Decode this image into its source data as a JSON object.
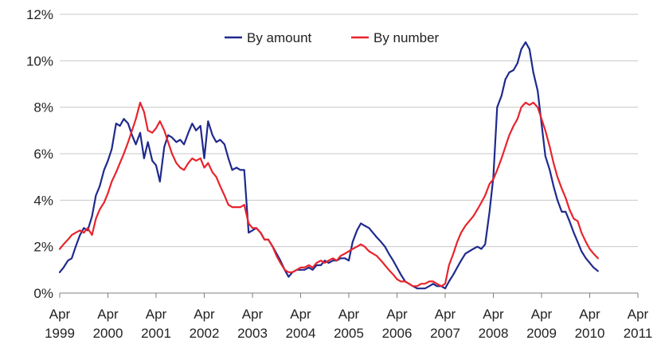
{
  "chart_data": {
    "type": "line",
    "title": "",
    "xlabel": "",
    "ylabel": "",
    "ylim": [
      0,
      12
    ],
    "y_tick_labels": [
      "0%",
      "2%",
      "4%",
      "6%",
      "8%",
      "10%",
      "12%"
    ],
    "y_ticks": [
      0,
      2,
      4,
      6,
      8,
      10,
      12
    ],
    "x_tick_labels": [
      {
        "top": "Apr",
        "bottom": "1999"
      },
      {
        "top": "Apr",
        "bottom": "2000"
      },
      {
        "top": "Apr",
        "bottom": "2001"
      },
      {
        "top": "Apr",
        "bottom": "2002"
      },
      {
        "top": "Apr",
        "bottom": "2003"
      },
      {
        "top": "Apr",
        "bottom": "2004"
      },
      {
        "top": "Apr",
        "bottom": "2005"
      },
      {
        "top": "Apr",
        "bottom": "2006"
      },
      {
        "top": "Apr",
        "bottom": "2007"
      },
      {
        "top": "Apr",
        "bottom": "2008"
      },
      {
        "top": "Apr",
        "bottom": "2009"
      },
      {
        "top": "Apr",
        "bottom": "2010"
      },
      {
        "top": "Apr",
        "bottom": "2011"
      }
    ],
    "xlim": [
      1999.25,
      2011.25
    ],
    "grid": "horizontal",
    "legend_position": "top-center",
    "series": [
      {
        "name": "By amount",
        "color": "#1f2a8c",
        "points": [
          [
            1999.25,
            0.9
          ],
          [
            1999.33,
            1.1
          ],
          [
            1999.42,
            1.4
          ],
          [
            1999.5,
            1.5
          ],
          [
            1999.58,
            2.0
          ],
          [
            1999.67,
            2.5
          ],
          [
            1999.75,
            2.8
          ],
          [
            1999.83,
            2.7
          ],
          [
            1999.92,
            3.3
          ],
          [
            2000.0,
            4.2
          ],
          [
            2000.08,
            4.6
          ],
          [
            2000.17,
            5.3
          ],
          [
            2000.25,
            5.7
          ],
          [
            2000.33,
            6.2
          ],
          [
            2000.42,
            7.3
          ],
          [
            2000.5,
            7.2
          ],
          [
            2000.58,
            7.5
          ],
          [
            2000.67,
            7.3
          ],
          [
            2000.75,
            6.8
          ],
          [
            2000.83,
            6.4
          ],
          [
            2000.92,
            6.9
          ],
          [
            2001.0,
            5.8
          ],
          [
            2001.08,
            6.5
          ],
          [
            2001.17,
            5.7
          ],
          [
            2001.25,
            5.5
          ],
          [
            2001.33,
            4.8
          ],
          [
            2001.42,
            6.3
          ],
          [
            2001.5,
            6.8
          ],
          [
            2001.58,
            6.7
          ],
          [
            2001.67,
            6.5
          ],
          [
            2001.75,
            6.6
          ],
          [
            2001.83,
            6.4
          ],
          [
            2001.92,
            6.9
          ],
          [
            2002.0,
            7.3
          ],
          [
            2002.08,
            7.0
          ],
          [
            2002.17,
            7.2
          ],
          [
            2002.25,
            5.8
          ],
          [
            2002.33,
            7.4
          ],
          [
            2002.42,
            6.8
          ],
          [
            2002.5,
            6.5
          ],
          [
            2002.58,
            6.6
          ],
          [
            2002.67,
            6.4
          ],
          [
            2002.75,
            5.8
          ],
          [
            2002.83,
            5.3
          ],
          [
            2002.92,
            5.4
          ],
          [
            2003.0,
            5.3
          ],
          [
            2003.08,
            5.3
          ],
          [
            2003.17,
            2.6
          ],
          [
            2003.25,
            2.7
          ],
          [
            2003.33,
            2.8
          ],
          [
            2003.42,
            2.6
          ],
          [
            2003.5,
            2.3
          ],
          [
            2003.58,
            2.3
          ],
          [
            2003.67,
            2.0
          ],
          [
            2003.75,
            1.7
          ],
          [
            2003.83,
            1.4
          ],
          [
            2003.92,
            1.0
          ],
          [
            2004.0,
            0.7
          ],
          [
            2004.08,
            0.9
          ],
          [
            2004.17,
            1.0
          ],
          [
            2004.25,
            1.0
          ],
          [
            2004.33,
            1.0
          ],
          [
            2004.42,
            1.1
          ],
          [
            2004.5,
            1.0
          ],
          [
            2004.58,
            1.2
          ],
          [
            2004.67,
            1.2
          ],
          [
            2004.75,
            1.4
          ],
          [
            2004.83,
            1.3
          ],
          [
            2004.92,
            1.4
          ],
          [
            2005.0,
            1.4
          ],
          [
            2005.08,
            1.5
          ],
          [
            2005.17,
            1.5
          ],
          [
            2005.25,
            1.4
          ],
          [
            2005.33,
            2.2
          ],
          [
            2005.42,
            2.7
          ],
          [
            2005.5,
            3.0
          ],
          [
            2005.58,
            2.9
          ],
          [
            2005.67,
            2.8
          ],
          [
            2005.75,
            2.6
          ],
          [
            2005.83,
            2.4
          ],
          [
            2005.92,
            2.2
          ],
          [
            2006.0,
            2.0
          ],
          [
            2006.08,
            1.7
          ],
          [
            2006.17,
            1.4
          ],
          [
            2006.25,
            1.1
          ],
          [
            2006.33,
            0.8
          ],
          [
            2006.42,
            0.5
          ],
          [
            2006.5,
            0.4
          ],
          [
            2006.58,
            0.3
          ],
          [
            2006.67,
            0.2
          ],
          [
            2006.75,
            0.2
          ],
          [
            2006.83,
            0.2
          ],
          [
            2006.92,
            0.3
          ],
          [
            2007.0,
            0.4
          ],
          [
            2007.08,
            0.3
          ],
          [
            2007.17,
            0.3
          ],
          [
            2007.25,
            0.2
          ],
          [
            2007.33,
            0.5
          ],
          [
            2007.42,
            0.8
          ],
          [
            2007.5,
            1.1
          ],
          [
            2007.58,
            1.4
          ],
          [
            2007.67,
            1.7
          ],
          [
            2007.75,
            1.8
          ],
          [
            2007.83,
            1.9
          ],
          [
            2007.92,
            2.0
          ],
          [
            2008.0,
            1.9
          ],
          [
            2008.08,
            2.1
          ],
          [
            2008.17,
            3.5
          ],
          [
            2008.25,
            5.0
          ],
          [
            2008.33,
            8.0
          ],
          [
            2008.42,
            8.5
          ],
          [
            2008.5,
            9.2
          ],
          [
            2008.58,
            9.5
          ],
          [
            2008.67,
            9.6
          ],
          [
            2008.75,
            9.9
          ],
          [
            2008.83,
            10.5
          ],
          [
            2008.92,
            10.8
          ],
          [
            2009.0,
            10.5
          ],
          [
            2009.08,
            9.5
          ],
          [
            2009.17,
            8.7
          ],
          [
            2009.25,
            7.3
          ],
          [
            2009.33,
            5.9
          ],
          [
            2009.42,
            5.3
          ],
          [
            2009.5,
            4.6
          ],
          [
            2009.58,
            4.0
          ],
          [
            2009.67,
            3.5
          ],
          [
            2009.75,
            3.5
          ],
          [
            2009.83,
            3.1
          ],
          [
            2009.92,
            2.6
          ],
          [
            2010.0,
            2.2
          ],
          [
            2010.08,
            1.8
          ],
          [
            2010.17,
            1.5
          ],
          [
            2010.25,
            1.3
          ],
          [
            2010.33,
            1.1
          ],
          [
            2010.42,
            0.95
          ]
        ]
      },
      {
        "name": "By number",
        "color": "#e8242c",
        "points": [
          [
            1999.25,
            1.9
          ],
          [
            1999.33,
            2.1
          ],
          [
            1999.42,
            2.3
          ],
          [
            1999.5,
            2.5
          ],
          [
            1999.58,
            2.6
          ],
          [
            1999.67,
            2.7
          ],
          [
            1999.75,
            2.6
          ],
          [
            1999.83,
            2.8
          ],
          [
            1999.92,
            2.5
          ],
          [
            2000.0,
            3.2
          ],
          [
            2000.08,
            3.6
          ],
          [
            2000.17,
            3.9
          ],
          [
            2000.25,
            4.3
          ],
          [
            2000.33,
            4.8
          ],
          [
            2000.42,
            5.2
          ],
          [
            2000.5,
            5.6
          ],
          [
            2000.58,
            6.0
          ],
          [
            2000.67,
            6.5
          ],
          [
            2000.75,
            7.0
          ],
          [
            2000.83,
            7.5
          ],
          [
            2000.92,
            8.2
          ],
          [
            2001.0,
            7.8
          ],
          [
            2001.08,
            7.0
          ],
          [
            2001.17,
            6.9
          ],
          [
            2001.25,
            7.1
          ],
          [
            2001.33,
            7.4
          ],
          [
            2001.42,
            7.0
          ],
          [
            2001.5,
            6.5
          ],
          [
            2001.58,
            6.0
          ],
          [
            2001.67,
            5.6
          ],
          [
            2001.75,
            5.4
          ],
          [
            2001.83,
            5.3
          ],
          [
            2001.92,
            5.6
          ],
          [
            2002.0,
            5.8
          ],
          [
            2002.08,
            5.7
          ],
          [
            2002.17,
            5.8
          ],
          [
            2002.25,
            5.4
          ],
          [
            2002.33,
            5.6
          ],
          [
            2002.42,
            5.2
          ],
          [
            2002.5,
            5.0
          ],
          [
            2002.58,
            4.6
          ],
          [
            2002.67,
            4.2
          ],
          [
            2002.75,
            3.8
          ],
          [
            2002.83,
            3.7
          ],
          [
            2002.92,
            3.7
          ],
          [
            2003.0,
            3.7
          ],
          [
            2003.08,
            3.8
          ],
          [
            2003.17,
            3.0
          ],
          [
            2003.25,
            2.8
          ],
          [
            2003.33,
            2.8
          ],
          [
            2003.42,
            2.6
          ],
          [
            2003.5,
            2.3
          ],
          [
            2003.58,
            2.3
          ],
          [
            2003.67,
            2.0
          ],
          [
            2003.75,
            1.6
          ],
          [
            2003.83,
            1.3
          ],
          [
            2003.92,
            1.0
          ],
          [
            2004.0,
            0.9
          ],
          [
            2004.08,
            0.9
          ],
          [
            2004.17,
            1.0
          ],
          [
            2004.25,
            1.1
          ],
          [
            2004.33,
            1.1
          ],
          [
            2004.42,
            1.2
          ],
          [
            2004.5,
            1.1
          ],
          [
            2004.58,
            1.3
          ],
          [
            2004.67,
            1.4
          ],
          [
            2004.75,
            1.3
          ],
          [
            2004.83,
            1.4
          ],
          [
            2004.92,
            1.5
          ],
          [
            2005.0,
            1.4
          ],
          [
            2005.08,
            1.6
          ],
          [
            2005.17,
            1.7
          ],
          [
            2005.25,
            1.8
          ],
          [
            2005.33,
            1.9
          ],
          [
            2005.42,
            2.0
          ],
          [
            2005.5,
            2.1
          ],
          [
            2005.58,
            2.0
          ],
          [
            2005.67,
            1.8
          ],
          [
            2005.75,
            1.7
          ],
          [
            2005.83,
            1.6
          ],
          [
            2005.92,
            1.4
          ],
          [
            2006.0,
            1.2
          ],
          [
            2006.08,
            1.0
          ],
          [
            2006.17,
            0.8
          ],
          [
            2006.25,
            0.6
          ],
          [
            2006.33,
            0.5
          ],
          [
            2006.42,
            0.5
          ],
          [
            2006.5,
            0.4
          ],
          [
            2006.58,
            0.3
          ],
          [
            2006.67,
            0.3
          ],
          [
            2006.75,
            0.4
          ],
          [
            2006.83,
            0.4
          ],
          [
            2006.92,
            0.5
          ],
          [
            2007.0,
            0.5
          ],
          [
            2007.08,
            0.4
          ],
          [
            2007.17,
            0.3
          ],
          [
            2007.25,
            0.4
          ],
          [
            2007.33,
            1.2
          ],
          [
            2007.42,
            1.7
          ],
          [
            2007.5,
            2.2
          ],
          [
            2007.58,
            2.6
          ],
          [
            2007.67,
            2.9
          ],
          [
            2007.75,
            3.1
          ],
          [
            2007.83,
            3.3
          ],
          [
            2007.92,
            3.6
          ],
          [
            2008.0,
            3.9
          ],
          [
            2008.08,
            4.2
          ],
          [
            2008.17,
            4.7
          ],
          [
            2008.25,
            4.9
          ],
          [
            2008.33,
            5.3
          ],
          [
            2008.42,
            5.8
          ],
          [
            2008.5,
            6.3
          ],
          [
            2008.58,
            6.8
          ],
          [
            2008.67,
            7.2
          ],
          [
            2008.75,
            7.5
          ],
          [
            2008.83,
            8.0
          ],
          [
            2008.92,
            8.2
          ],
          [
            2009.0,
            8.1
          ],
          [
            2009.08,
            8.2
          ],
          [
            2009.17,
            8.0
          ],
          [
            2009.25,
            7.5
          ],
          [
            2009.33,
            7.0
          ],
          [
            2009.42,
            6.3
          ],
          [
            2009.5,
            5.6
          ],
          [
            2009.58,
            5.0
          ],
          [
            2009.67,
            4.5
          ],
          [
            2009.75,
            4.1
          ],
          [
            2009.83,
            3.6
          ],
          [
            2009.92,
            3.2
          ],
          [
            2010.0,
            3.1
          ],
          [
            2010.08,
            2.6
          ],
          [
            2010.17,
            2.2
          ],
          [
            2010.25,
            1.9
          ],
          [
            2010.33,
            1.7
          ],
          [
            2010.42,
            1.5
          ]
        ]
      }
    ]
  }
}
